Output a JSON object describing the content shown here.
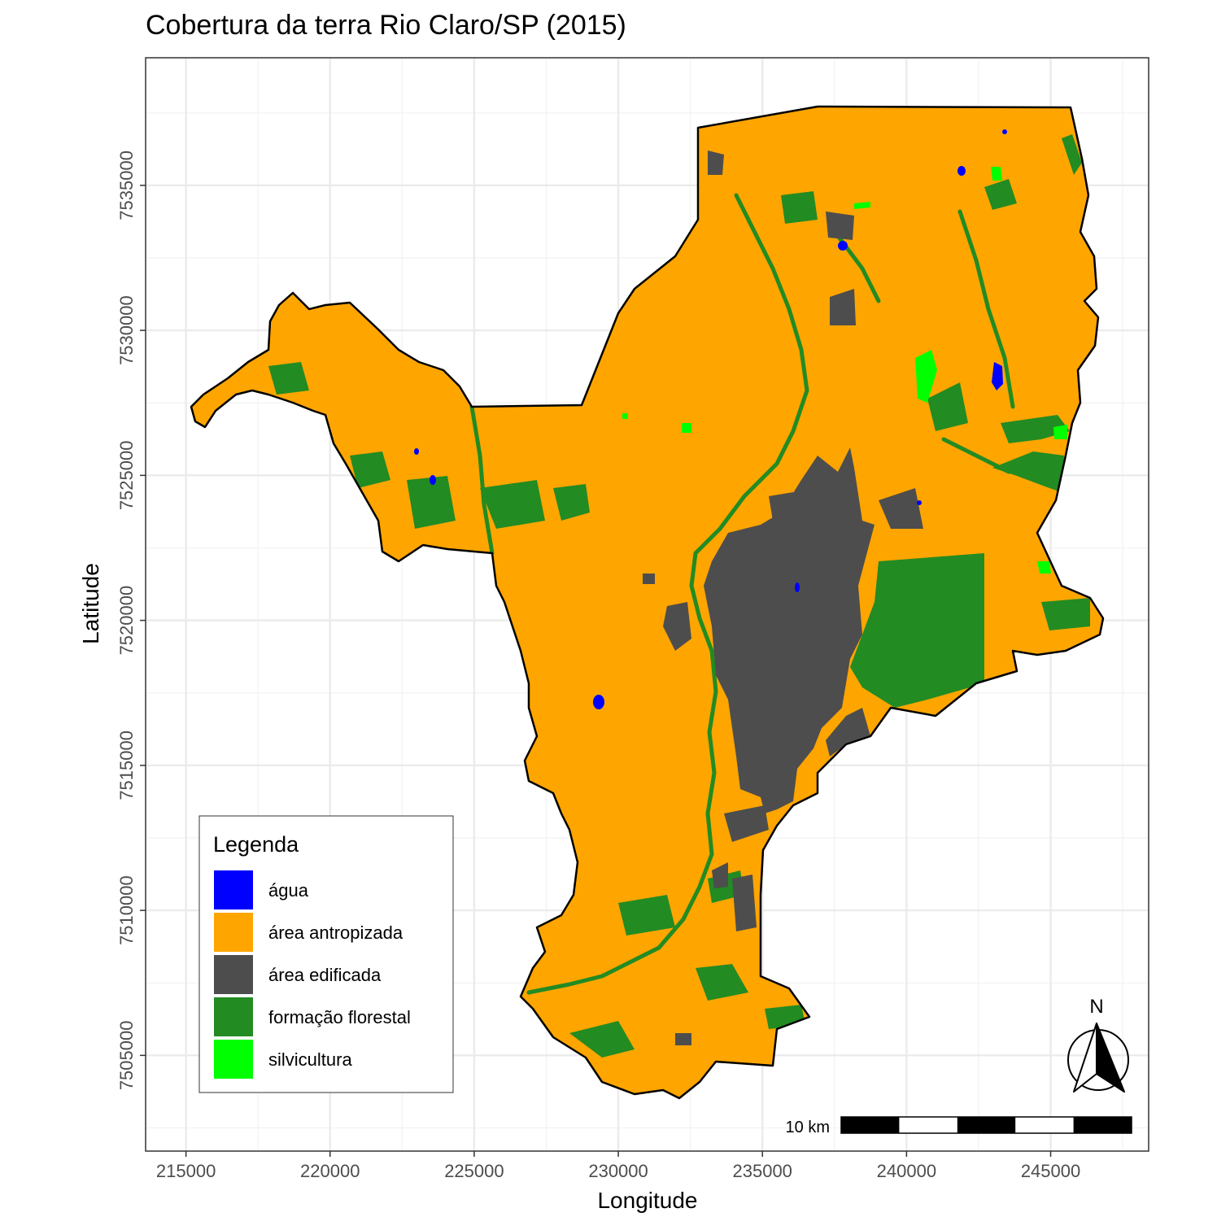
{
  "title": "Cobertura da terra Rio Claro/SP (2015)",
  "axes": {
    "xlabel": "Longitude",
    "ylabel": "Latitude",
    "xticks": [
      "215000",
      "220000",
      "225000",
      "230000",
      "235000",
      "240000",
      "245000"
    ],
    "yticks": [
      "7505000",
      "7510000",
      "7515000",
      "7520000",
      "7525000",
      "7530000",
      "7535000"
    ],
    "xlim": [
      213600,
      248400
    ],
    "ylim": [
      7501700,
      7539400
    ],
    "grid": true
  },
  "legend": {
    "title": "Legenda",
    "position": "bottom-left",
    "items": [
      {
        "label": "água",
        "color": "#0000FF"
      },
      {
        "label": "área antropizada",
        "color": "#FFA500"
      },
      {
        "label": "área edificada",
        "color": "#4D4D4D"
      },
      {
        "label": "formação florestal",
        "color": "#228B22"
      },
      {
        "label": "silvicultura",
        "color": "#00FF00"
      }
    ]
  },
  "scale_bar": {
    "label": "10 km",
    "position": "bottom-right"
  },
  "north_arrow": {
    "label": "N",
    "position": "bottom-right",
    "icon": "north-arrow-icon"
  }
}
